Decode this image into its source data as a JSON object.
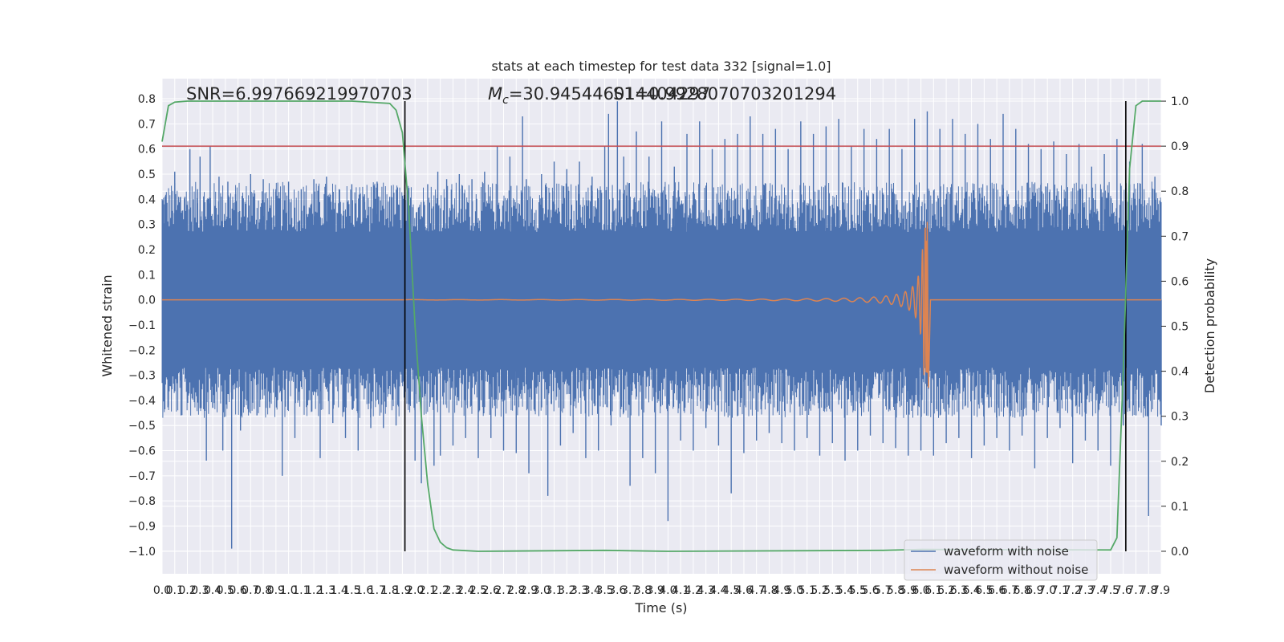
{
  "chart_data": {
    "type": "line",
    "title": "stats at each timestep for test data 332 [signal=1.0]",
    "annotations": {
      "snr": "SNR=6.997669219970703",
      "mc_prefix": "M",
      "mc_sub": "c",
      "mc_value": "=30.945446014404297",
      "overlap": "S1=0.9928070703201294"
    },
    "xlabel": "Time (s)",
    "ylabel_left": "Whitened strain",
    "ylabel_right": "Detection probability",
    "xlim": [
      0.0,
      7.9
    ],
    "ylim_left": [
      -1.09,
      0.88
    ],
    "ylim_right": [
      -0.05,
      1.05
    ],
    "x_ticks": [
      "0.0",
      "0.1",
      "0.2",
      "0.3",
      "0.4",
      "0.5",
      "0.6",
      "0.7",
      "0.8",
      "0.9",
      "1.0",
      "1.1",
      "1.2",
      "1.3",
      "1.4",
      "1.5",
      "1.6",
      "1.7",
      "1.8",
      "1.9",
      "2.0",
      "2.1",
      "2.2",
      "2.3",
      "2.4",
      "2.5",
      "2.6",
      "2.7",
      "2.8",
      "2.9",
      "3.0",
      "3.1",
      "3.2",
      "3.3",
      "3.4",
      "3.5",
      "3.6",
      "3.7",
      "3.8",
      "3.9",
      "4.0",
      "4.1",
      "4.2",
      "4.3",
      "4.4",
      "4.5",
      "4.6",
      "4.7",
      "4.8",
      "4.9",
      "5.0",
      "5.1",
      "5.2",
      "5.3",
      "5.4",
      "5.5",
      "5.6",
      "5.7",
      "5.8",
      "5.9",
      "6.0",
      "6.1",
      "6.2",
      "6.3",
      "6.4",
      "6.5",
      "6.6",
      "6.7",
      "6.8",
      "6.9",
      "7.0",
      "7.1",
      "7.2",
      "7.3",
      "7.4",
      "7.5",
      "7.6",
      "7.7",
      "7.8",
      "7.9"
    ],
    "y_ticks_left": [
      "0.8",
      "0.7",
      "0.6",
      "0.5",
      "0.4",
      "0.3",
      "0.2",
      "0.1",
      "0.0",
      "−0.1",
      "−0.2",
      "−0.3",
      "−0.4",
      "−0.5",
      "−0.6",
      "−0.7",
      "−0.8",
      "−0.9",
      "−1.0"
    ],
    "y_tick_values_left": [
      0.8,
      0.7,
      0.6,
      0.5,
      0.4,
      0.3,
      0.2,
      0.1,
      0.0,
      -0.1,
      -0.2,
      -0.3,
      -0.4,
      -0.5,
      -0.6,
      -0.7,
      -0.8,
      -0.9,
      -1.0
    ],
    "y_ticks_right": [
      "1.0",
      "0.9",
      "0.8",
      "0.7",
      "0.6",
      "0.5",
      "0.4",
      "0.3",
      "0.2",
      "0.1",
      "0.0"
    ],
    "y_tick_values_right": [
      1.0,
      0.9,
      0.8,
      0.7,
      0.6,
      0.5,
      0.4,
      0.3,
      0.2,
      0.1,
      0.0
    ],
    "noise": {
      "name": "waveform with noise",
      "color": "#4c72b0",
      "core_amplitude": 0.25,
      "spikes": [
        [
          0.02,
          0.38
        ],
        [
          0.05,
          -0.42
        ],
        [
          0.1,
          0.51
        ],
        [
          0.15,
          -0.46
        ],
        [
          0.18,
          0.41
        ],
        [
          0.22,
          0.6
        ],
        [
          0.24,
          -0.39
        ],
        [
          0.28,
          0.44
        ],
        [
          0.3,
          0.57
        ],
        [
          0.35,
          -0.64
        ],
        [
          0.38,
          0.61
        ],
        [
          0.4,
          -0.43
        ],
        [
          0.45,
          0.49
        ],
        [
          0.48,
          -0.6
        ],
        [
          0.52,
          0.47
        ],
        [
          0.55,
          -0.99
        ],
        [
          0.58,
          0.42
        ],
        [
          0.62,
          -0.52
        ],
        [
          0.7,
          0.5
        ],
        [
          0.75,
          -0.46
        ],
        [
          0.8,
          0.48
        ],
        [
          0.85,
          -0.43
        ],
        [
          0.9,
          0.44
        ],
        [
          0.95,
          -0.7
        ],
        [
          1.0,
          0.47
        ],
        [
          1.05,
          -0.55
        ],
        [
          1.1,
          0.44
        ],
        [
          1.15,
          -0.42
        ],
        [
          1.2,
          0.48
        ],
        [
          1.25,
          -0.63
        ],
        [
          1.3,
          0.49
        ],
        [
          1.35,
          -0.49
        ],
        [
          1.4,
          0.44
        ],
        [
          1.45,
          -0.55
        ],
        [
          1.5,
          0.46
        ],
        [
          1.55,
          -0.6
        ],
        [
          1.6,
          0.42
        ],
        [
          1.65,
          -0.51
        ],
        [
          1.7,
          0.47
        ],
        [
          1.75,
          -0.51
        ],
        [
          1.8,
          0.41
        ],
        [
          1.85,
          -0.5
        ],
        [
          1.9,
          0.41
        ],
        [
          2.0,
          -0.64
        ],
        [
          2.05,
          -0.73
        ],
        [
          2.1,
          0.46
        ],
        [
          2.15,
          -0.66
        ],
        [
          2.18,
          0.51
        ],
        [
          2.2,
          -0.62
        ],
        [
          2.25,
          0.48
        ],
        [
          2.3,
          -0.58
        ],
        [
          2.35,
          0.5
        ],
        [
          2.4,
          -0.55
        ],
        [
          2.45,
          0.48
        ],
        [
          2.5,
          -0.63
        ],
        [
          2.55,
          0.51
        ],
        [
          2.6,
          -0.55
        ],
        [
          2.65,
          0.61
        ],
        [
          2.7,
          -0.6
        ],
        [
          2.75,
          0.57
        ],
        [
          2.8,
          -0.61
        ],
        [
          2.85,
          0.73
        ],
        [
          2.88,
          0.48
        ],
        [
          2.9,
          -0.69
        ],
        [
          3.0,
          0.5
        ],
        [
          3.05,
          -0.78
        ],
        [
          3.1,
          0.55
        ],
        [
          3.15,
          -0.58
        ],
        [
          3.2,
          0.52
        ],
        [
          3.25,
          -0.53
        ],
        [
          3.3,
          0.55
        ],
        [
          3.35,
          -0.63
        ],
        [
          3.4,
          0.49
        ],
        [
          3.45,
          -0.6
        ],
        [
          3.5,
          0.61
        ],
        [
          3.53,
          0.74
        ],
        [
          3.55,
          -0.5
        ],
        [
          3.6,
          0.79
        ],
        [
          3.65,
          0.57
        ],
        [
          3.7,
          -0.74
        ],
        [
          3.75,
          0.67
        ],
        [
          3.8,
          -0.63
        ],
        [
          3.85,
          0.57
        ],
        [
          3.9,
          -0.69
        ],
        [
          3.95,
          0.71
        ],
        [
          4.0,
          -0.88
        ],
        [
          4.05,
          0.53
        ],
        [
          4.1,
          -0.56
        ],
        [
          4.15,
          0.66
        ],
        [
          4.2,
          -0.6
        ],
        [
          4.25,
          0.71
        ],
        [
          4.3,
          -0.51
        ],
        [
          4.35,
          0.6
        ],
        [
          4.4,
          -0.58
        ],
        [
          4.45,
          0.64
        ],
        [
          4.5,
          -0.77
        ],
        [
          4.55,
          0.66
        ],
        [
          4.6,
          -0.61
        ],
        [
          4.65,
          0.73
        ],
        [
          4.7,
          -0.56
        ],
        [
          4.75,
          0.66
        ],
        [
          4.8,
          -0.53
        ],
        [
          4.85,
          0.68
        ],
        [
          4.9,
          -0.57
        ],
        [
          4.95,
          0.6
        ],
        [
          5.0,
          -0.6
        ],
        [
          5.05,
          0.71
        ],
        [
          5.1,
          -0.55
        ],
        [
          5.15,
          0.66
        ],
        [
          5.2,
          -0.62
        ],
        [
          5.25,
          0.69
        ],
        [
          5.3,
          -0.57
        ],
        [
          5.35,
          0.72
        ],
        [
          5.4,
          -0.64
        ],
        [
          5.45,
          0.61
        ],
        [
          5.5,
          -0.6
        ],
        [
          5.55,
          0.68
        ],
        [
          5.6,
          -0.54
        ],
        [
          5.65,
          0.64
        ],
        [
          5.7,
          -0.57
        ],
        [
          5.75,
          0.68
        ],
        [
          5.8,
          -0.59
        ],
        [
          5.85,
          0.6
        ],
        [
          5.9,
          -0.62
        ],
        [
          5.95,
          0.72
        ],
        [
          6.0,
          -0.6
        ],
        [
          6.05,
          0.75
        ],
        [
          6.1,
          -0.62
        ],
        [
          6.15,
          0.68
        ],
        [
          6.2,
          -0.57
        ],
        [
          6.25,
          0.72
        ],
        [
          6.3,
          -0.55
        ],
        [
          6.35,
          0.66
        ],
        [
          6.4,
          -0.63
        ],
        [
          6.45,
          0.7
        ],
        [
          6.5,
          -0.58
        ],
        [
          6.55,
          0.64
        ],
        [
          6.6,
          -0.55
        ],
        [
          6.65,
          0.74
        ],
        [
          6.7,
          -0.6
        ],
        [
          6.75,
          0.68
        ],
        [
          6.8,
          -0.54
        ],
        [
          6.85,
          0.62
        ],
        [
          6.9,
          -0.67
        ],
        [
          6.95,
          0.6
        ],
        [
          7.0,
          -0.55
        ],
        [
          7.05,
          0.63
        ],
        [
          7.1,
          -0.51
        ],
        [
          7.15,
          0.58
        ],
        [
          7.2,
          -0.65
        ],
        [
          7.25,
          0.62
        ],
        [
          7.3,
          -0.56
        ],
        [
          7.35,
          0.53
        ],
        [
          7.4,
          -0.6
        ],
        [
          7.45,
          0.58
        ],
        [
          7.5,
          -0.66
        ],
        [
          7.55,
          0.64
        ],
        [
          7.6,
          -0.5
        ],
        [
          7.65,
          0.55
        ],
        [
          7.7,
          -0.46
        ],
        [
          7.75,
          0.62
        ],
        [
          7.8,
          -0.86
        ],
        [
          7.85,
          0.49
        ],
        [
          7.9,
          -0.5
        ]
      ]
    },
    "clean": {
      "name": "waveform without noise",
      "color": "#dd8452",
      "merger_time": 6.05,
      "peak_amplitude": 0.31,
      "trough_amplitude": -0.35
    },
    "probability": {
      "color": "#55a868",
      "points": [
        [
          0.0,
          0.91
        ],
        [
          0.05,
          0.99
        ],
        [
          0.1,
          0.998
        ],
        [
          0.2,
          1.0
        ],
        [
          1.5,
          1.0
        ],
        [
          1.8,
          0.995
        ],
        [
          1.85,
          0.98
        ],
        [
          1.9,
          0.93
        ],
        [
          1.95,
          0.76
        ],
        [
          2.0,
          0.5
        ],
        [
          2.05,
          0.3
        ],
        [
          2.1,
          0.15
        ],
        [
          2.15,
          0.05
        ],
        [
          2.2,
          0.02
        ],
        [
          2.25,
          0.008
        ],
        [
          2.3,
          0.003
        ],
        [
          2.5,
          0.0
        ],
        [
          3.5,
          0.002
        ],
        [
          4.0,
          0.0
        ],
        [
          5.7,
          0.002
        ],
        [
          6.0,
          0.004
        ],
        [
          7.5,
          0.003
        ],
        [
          7.55,
          0.03
        ],
        [
          7.6,
          0.4
        ],
        [
          7.65,
          0.85
        ],
        [
          7.7,
          0.99
        ],
        [
          7.75,
          1.0
        ],
        [
          7.9,
          1.0
        ]
      ]
    },
    "threshold": {
      "value": 0.9,
      "color": "#c44e52"
    },
    "vlines": [
      1.92,
      7.62
    ],
    "legend": {
      "position": "bottom-right",
      "entries": [
        "waveform with noise",
        "waveform without noise"
      ]
    },
    "grid": true
  }
}
